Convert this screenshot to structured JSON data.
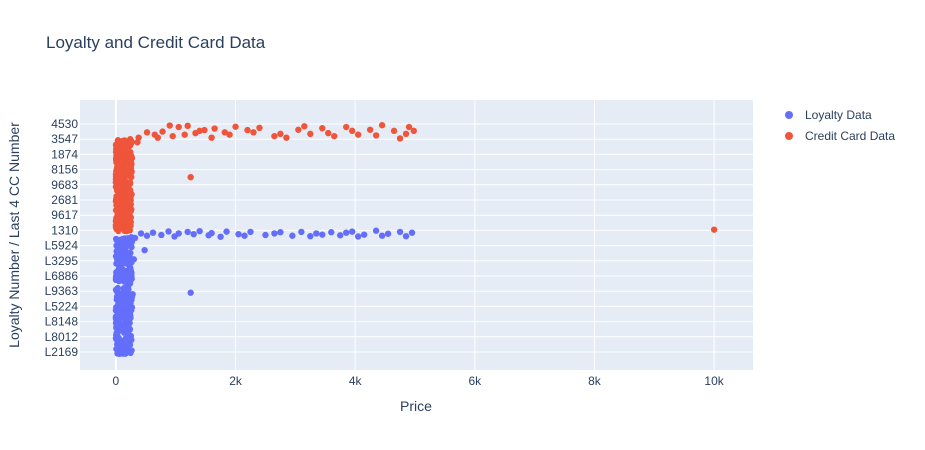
{
  "chart_data": {
    "type": "scatter",
    "title": "Loyalty and Credit Card Data",
    "xlabel": "Price",
    "ylabel": "Loyalty Number / Last 4 CC Number",
    "xlim": [
      -600,
      10650
    ],
    "x_ticks": [
      0,
      2000,
      4000,
      6000,
      8000,
      10000
    ],
    "x_tick_labels": [
      "0",
      "2k",
      "4k",
      "6k",
      "8k",
      "10k"
    ],
    "y_tick_labels": [
      "L2169",
      "L8012",
      "L8148",
      "L5224",
      "L9363",
      "L6886",
      "L3295",
      "L5924",
      "1310",
      "9617",
      "2681",
      "9683",
      "8156",
      "1874",
      "3547",
      "4530"
    ],
    "grid": true,
    "legend_position": "top-right",
    "colors": {
      "Loyalty Data": "#636efa",
      "Credit Card Data": "#ef553b"
    },
    "series": [
      {
        "name": "Loyalty Data",
        "points": [
          [
            260,
            7.55
          ],
          [
            420,
            7.8
          ],
          [
            620,
            7.85
          ],
          [
            880,
            7.93
          ],
          [
            1050,
            7.8
          ],
          [
            1200,
            7.9
          ],
          [
            1400,
            7.95
          ],
          [
            1600,
            7.82
          ],
          [
            1850,
            7.92
          ],
          [
            2050,
            7.75
          ],
          [
            2250,
            7.9
          ],
          [
            2500,
            7.7
          ],
          [
            2750,
            7.88
          ],
          [
            2950,
            7.65
          ],
          [
            3100,
            7.9
          ],
          [
            3350,
            7.8
          ],
          [
            3600,
            7.88
          ],
          [
            3750,
            7.68
          ],
          [
            3950,
            7.92
          ],
          [
            4150,
            7.72
          ],
          [
            4350,
            7.98
          ],
          [
            4550,
            7.78
          ],
          [
            4750,
            7.9
          ],
          [
            4950,
            7.85
          ],
          [
            320,
            7.5
          ],
          [
            520,
            7.65
          ],
          [
            760,
            7.7
          ],
          [
            980,
            7.6
          ],
          [
            1300,
            7.75
          ],
          [
            1550,
            7.68
          ],
          [
            1750,
            7.58
          ],
          [
            2150,
            7.65
          ],
          [
            2650,
            7.8
          ],
          [
            3250,
            7.62
          ],
          [
            3450,
            7.72
          ],
          [
            3850,
            7.85
          ],
          [
            4050,
            7.6
          ],
          [
            4450,
            7.65
          ],
          [
            4850,
            7.62
          ],
          [
            480,
            6.7
          ],
          [
            300,
            6.1
          ],
          [
            1250,
            3.9
          ],
          [
            260,
            6.9
          ],
          [
            230,
            5.2
          ],
          [
            280,
            3.8
          ],
          [
            240,
            2.4
          ]
        ],
        "dense": {
          "x_range": [
            0,
            270
          ],
          "y_range": [
            -0.15,
            7.5
          ],
          "count": 300
        }
      },
      {
        "name": "Credit Card Data",
        "points": [
          [
            240,
            14.0
          ],
          [
            380,
            14.1
          ],
          [
            520,
            14.45
          ],
          [
            650,
            14.3
          ],
          [
            780,
            14.5
          ],
          [
            900,
            14.9
          ],
          [
            1050,
            14.8
          ],
          [
            1200,
            14.88
          ],
          [
            1330,
            14.4
          ],
          [
            1480,
            14.6
          ],
          [
            1650,
            14.7
          ],
          [
            1820,
            14.45
          ],
          [
            2000,
            14.82
          ],
          [
            2200,
            14.6
          ],
          [
            2400,
            14.75
          ],
          [
            2650,
            14.2
          ],
          [
            2850,
            14.1
          ],
          [
            3050,
            14.62
          ],
          [
            3250,
            14.35
          ],
          [
            3450,
            14.72
          ],
          [
            3650,
            14.2
          ],
          [
            3850,
            14.8
          ],
          [
            4050,
            14.3
          ],
          [
            4250,
            14.62
          ],
          [
            4450,
            14.92
          ],
          [
            4650,
            14.55
          ],
          [
            4850,
            14.35
          ],
          [
            4980,
            14.55
          ],
          [
            360,
            13.8
          ],
          [
            700,
            14.1
          ],
          [
            950,
            14.2
          ],
          [
            1150,
            14.3
          ],
          [
            1400,
            14.55
          ],
          [
            1600,
            14.1
          ],
          [
            1900,
            14.3
          ],
          [
            2300,
            14.45
          ],
          [
            2750,
            14.35
          ],
          [
            3150,
            14.85
          ],
          [
            3550,
            14.4
          ],
          [
            3950,
            14.55
          ],
          [
            4350,
            14.25
          ],
          [
            4750,
            14.05
          ],
          [
            4900,
            14.8
          ],
          [
            250,
            12.1
          ],
          [
            1250,
            11.5
          ],
          [
            10000,
            8.05
          ]
        ],
        "dense": {
          "x_range": [
            0,
            270
          ],
          "y_range": [
            7.95,
            14.1
          ],
          "count": 300
        }
      }
    ]
  }
}
